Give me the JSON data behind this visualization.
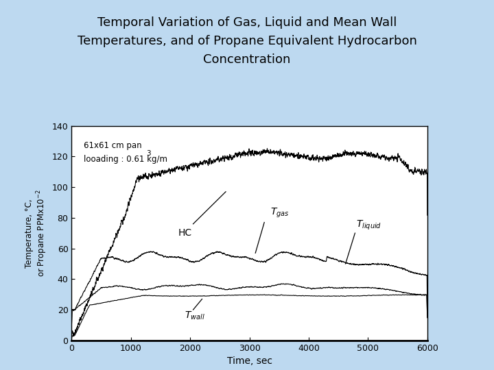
{
  "title_line1": "Temporal Variation of Gas, Liquid and Mean Wall",
  "title_line2": "Temperatures, and of Propane Equivalent Hydrocarbon",
  "title_line3": "Concentration",
  "xlabel": "Time, sec",
  "xlim": [
    0,
    6000
  ],
  "ylim": [
    0,
    140
  ],
  "xticks": [
    0,
    1000,
    2000,
    3000,
    4000,
    5000,
    6000
  ],
  "yticks": [
    0,
    20,
    40,
    60,
    80,
    100,
    120,
    140
  ],
  "bg_outer": "#bdd9f0",
  "bg_inner": "#ffffff",
  "annotation_text1": "61x61 cm pan",
  "annotation_text2": "looading : 0.61 kg/m",
  "annotation_superscript": "3"
}
